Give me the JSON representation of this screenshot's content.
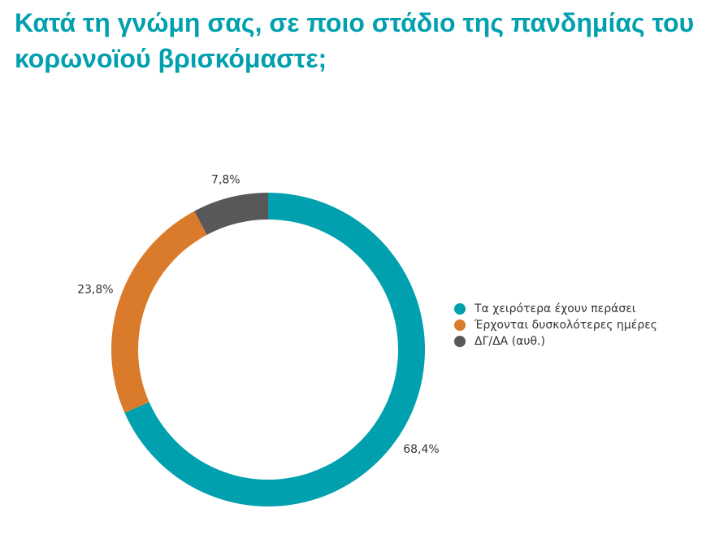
{
  "chart_data": {
    "type": "donut",
    "title": "Κατά τη γνώμη σας, σε ποιο στάδιο της πανδημίας του κορωνοϊού βρισκόμαστε;",
    "categories": [
      "Τα χειρότερα έχουν περάσει",
      "Έρχονται δυσκολότερες ημέρες",
      "ΔΓ/ΔΑ (αυθ.)"
    ],
    "values": [
      68.4,
      23.8,
      7.8
    ],
    "value_labels": [
      "68,4%",
      "23,8%",
      "7,8%"
    ],
    "colors": [
      "#00a0ae",
      "#d97b2b",
      "#58585a"
    ],
    "legend": "right"
  }
}
